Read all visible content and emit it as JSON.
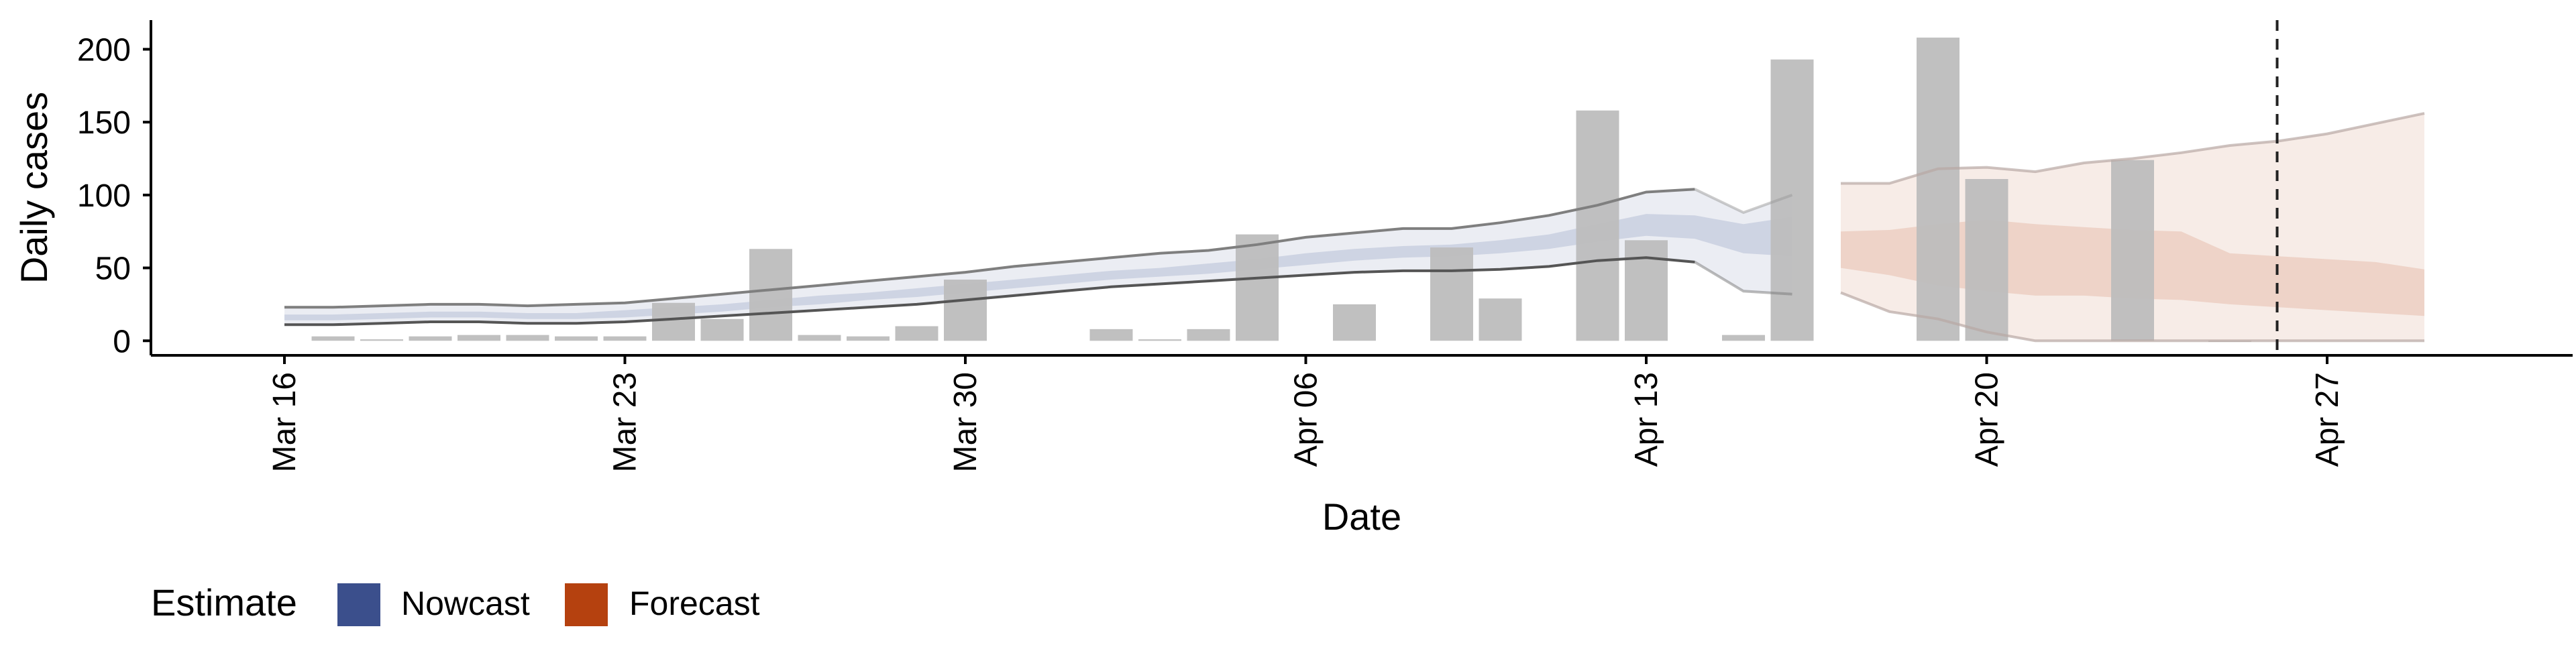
{
  "chart_data": {
    "type": "bar",
    "xlabel": "Date",
    "ylabel": "Daily cases",
    "ylim": [
      -10,
      220
    ],
    "yticks": [
      0,
      50,
      100,
      150,
      200
    ],
    "x_start": "2020-03-16",
    "xtick_labels": [
      "Mar 16",
      "Mar 23",
      "Mar 30",
      "Apr 06",
      "Apr 13",
      "Apr 20",
      "Apr 27"
    ],
    "reference_line_date": "2020-04-26",
    "grid": false,
    "legend": {
      "position": "bottom-left",
      "title": "Estimate",
      "entries": [
        {
          "label": "Nowcast",
          "color": "#3b4f8c"
        },
        {
          "label": "Forecast",
          "color": "#b5410f"
        }
      ]
    },
    "bars": {
      "color": "#bdbdbd",
      "dates": [
        "2020-03-17",
        "2020-03-18",
        "2020-03-19",
        "2020-03-20",
        "2020-03-21",
        "2020-03-22",
        "2020-03-23",
        "2020-03-24",
        "2020-03-25",
        "2020-03-26",
        "2020-03-27",
        "2020-03-28",
        "2020-03-29",
        "2020-03-30",
        "2020-04-02",
        "2020-04-03",
        "2020-04-04",
        "2020-04-05",
        "2020-04-07",
        "2020-04-09",
        "2020-04-10",
        "2020-04-12",
        "2020-04-13",
        "2020-04-15",
        "2020-04-16",
        "2020-04-19",
        "2020-04-20",
        "2020-04-23",
        "2020-04-25"
      ],
      "values": [
        3,
        1,
        3,
        4,
        4,
        3,
        3,
        26,
        15,
        63,
        4,
        3,
        10,
        42,
        8,
        1,
        8,
        73,
        25,
        64,
        29,
        158,
        69,
        4,
        193,
        208,
        111,
        124,
        0
      ]
    },
    "nowcast": {
      "color": "#3b4f8c",
      "dates": [
        "2020-03-16",
        "2020-03-17",
        "2020-03-18",
        "2020-03-19",
        "2020-03-20",
        "2020-03-21",
        "2020-03-22",
        "2020-03-23",
        "2020-03-24",
        "2020-03-25",
        "2020-03-26",
        "2020-03-27",
        "2020-03-28",
        "2020-03-29",
        "2020-03-30",
        "2020-03-31",
        "2020-04-01",
        "2020-04-02",
        "2020-04-03",
        "2020-04-04",
        "2020-04-05",
        "2020-04-06",
        "2020-04-07",
        "2020-04-08",
        "2020-04-09",
        "2020-04-10",
        "2020-04-11",
        "2020-04-12",
        "2020-04-13",
        "2020-04-14",
        "2020-04-15",
        "2020-04-16"
      ],
      "outer_lower": [
        11,
        11,
        12,
        13,
        13,
        12,
        12,
        13,
        15,
        17,
        19,
        21,
        23,
        25,
        28,
        31,
        34,
        37,
        39,
        41,
        43,
        45,
        47,
        48,
        48,
        49,
        51,
        55,
        57,
        54,
        34,
        32
      ],
      "outer_upper": [
        23,
        23,
        24,
        25,
        25,
        24,
        25,
        26,
        29,
        32,
        35,
        38,
        41,
        44,
        47,
        51,
        54,
        57,
        60,
        62,
        66,
        71,
        74,
        77,
        77,
        81,
        86,
        93,
        102,
        104,
        88,
        100
      ],
      "inner_lower": [
        14,
        14,
        15,
        16,
        16,
        15,
        15,
        16,
        18,
        20,
        23,
        25,
        28,
        30,
        33,
        36,
        39,
        42,
        44,
        46,
        49,
        52,
        55,
        57,
        58,
        60,
        63,
        68,
        72,
        70,
        60,
        58
      ],
      "inner_upper": [
        18,
        18,
        19,
        20,
        20,
        19,
        19,
        21,
        23,
        25,
        28,
        31,
        33,
        36,
        39,
        42,
        45,
        48,
        50,
        53,
        56,
        60,
        63,
        65,
        66,
        69,
        73,
        80,
        87,
        86,
        80,
        85
      ]
    },
    "forecast": {
      "color": "#b5410f",
      "dates": [
        "2020-04-17",
        "2020-04-18",
        "2020-04-19",
        "2020-04-20",
        "2020-04-21",
        "2020-04-22",
        "2020-04-23",
        "2020-04-24",
        "2020-04-25",
        "2020-04-26",
        "2020-04-27",
        "2020-04-28",
        "2020-04-29"
      ],
      "outer_lower": [
        33,
        20,
        15,
        6,
        0,
        0,
        0,
        0,
        0,
        0,
        0,
        0,
        0
      ],
      "outer_upper": [
        108,
        108,
        118,
        119,
        116,
        122,
        125,
        129,
        134,
        137,
        142,
        149,
        156
      ],
      "inner_lower": [
        50,
        45,
        38,
        34,
        31,
        31,
        29,
        28,
        25,
        23,
        21,
        19,
        17
      ],
      "inner_upper": [
        75,
        76,
        80,
        83,
        80,
        78,
        76,
        75,
        60,
        58,
        56,
        54,
        49
      ]
    }
  }
}
